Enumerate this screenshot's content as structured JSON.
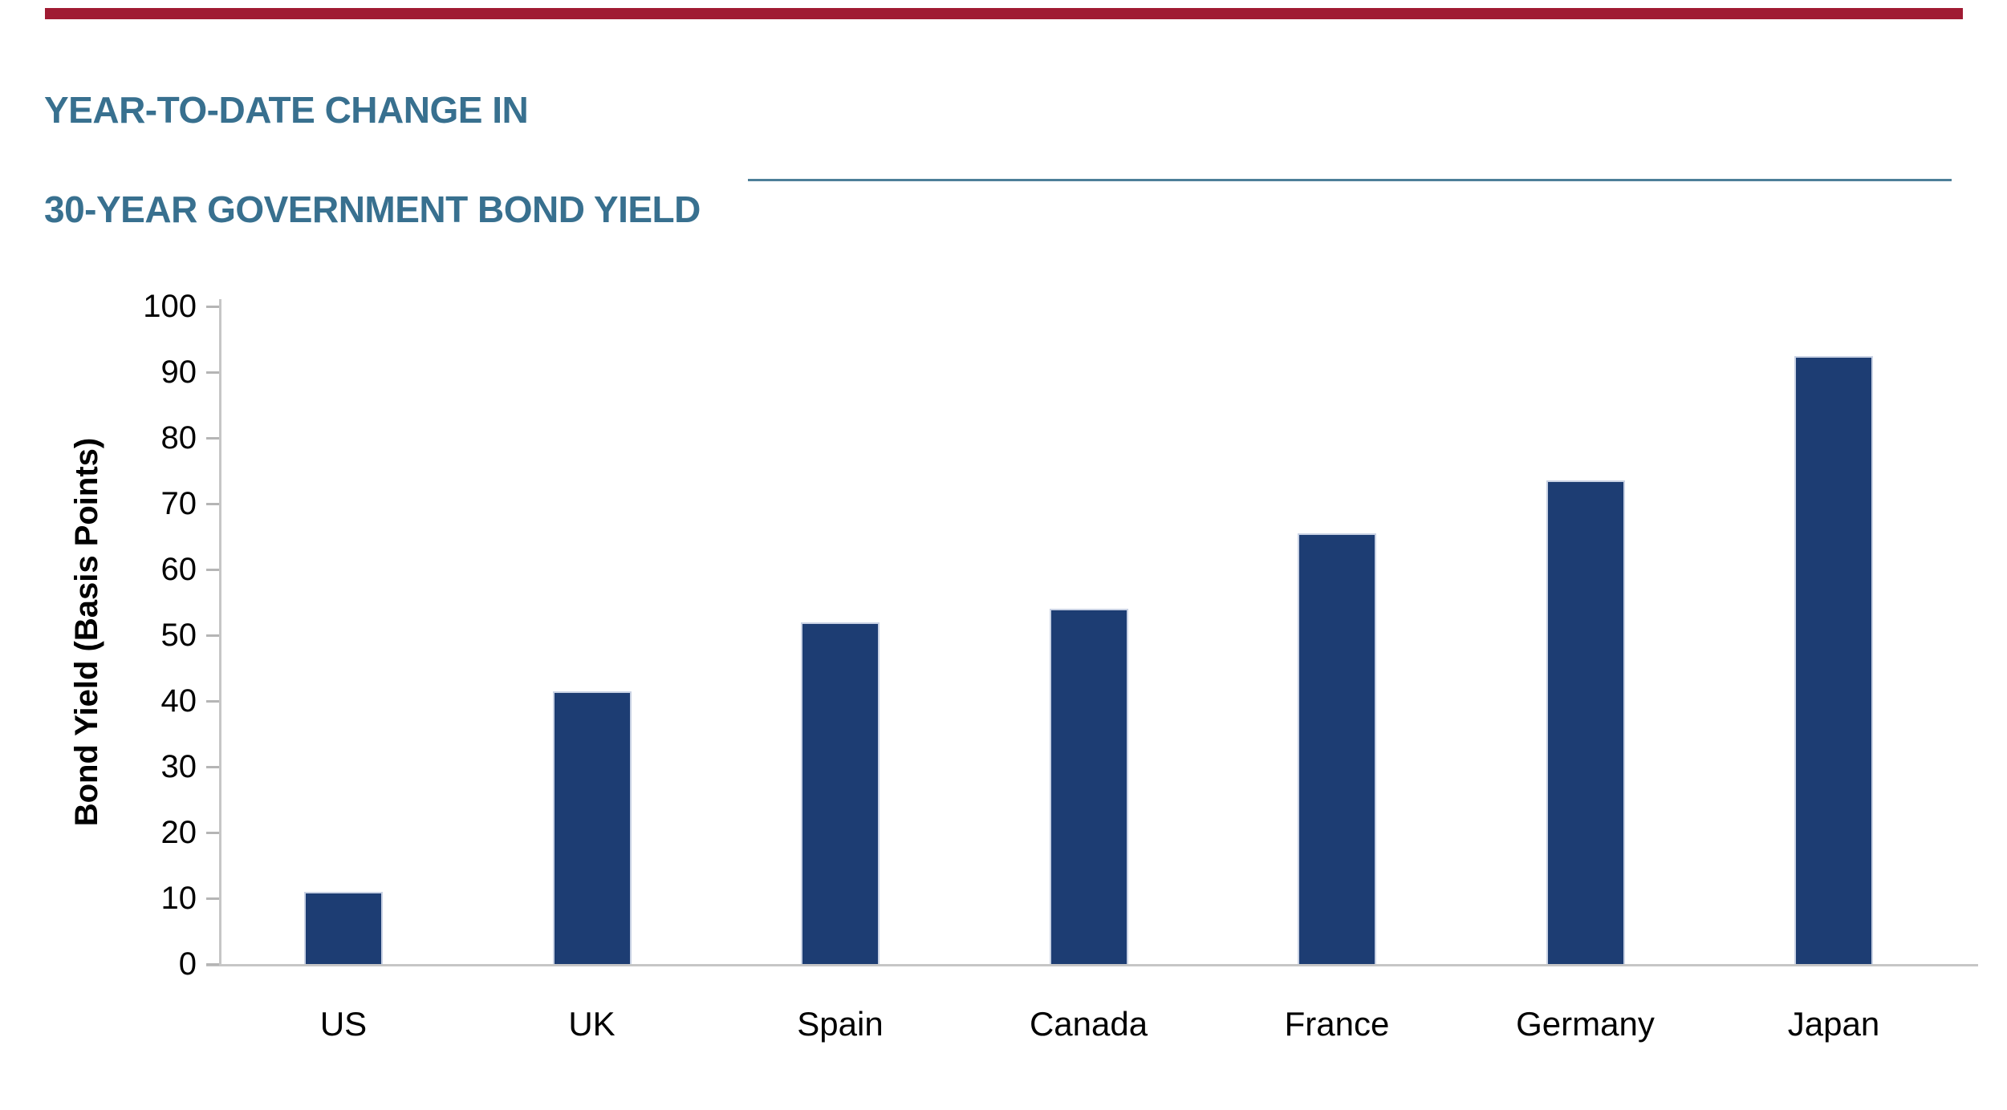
{
  "brand": {
    "top_bar_color": "#A01B33",
    "title_color": "#38708F",
    "rule_color": "#4D7F99"
  },
  "title": {
    "line1": "YEAR-TO-DATE CHANGE IN",
    "line2": "30-YEAR GOVERNMENT BOND YIELD"
  },
  "chart_data": {
    "type": "bar",
    "title": "YEAR-TO-DATE CHANGE IN 30-YEAR GOVERNMENT BOND YIELD",
    "categories": [
      "US",
      "UK",
      "Spain",
      "Canada",
      "France",
      "Germany",
      "Japan"
    ],
    "values": [
      11,
      41.5,
      52,
      54,
      65.5,
      73.5,
      92.5
    ],
    "xlabel": "",
    "ylabel": "Bond Yield (Basis Points)",
    "ylim": [
      0,
      100
    ],
    "yticks": [
      0,
      10,
      20,
      30,
      40,
      50,
      60,
      70,
      80,
      90,
      100
    ],
    "grid": false,
    "legend": "none",
    "bar_color": "#1D3D73",
    "bar_edge_color": "#C9D2E4",
    "axis_color": "#C6C6C6",
    "tick_color": "#B5B5B5",
    "label_color": "#000000"
  }
}
